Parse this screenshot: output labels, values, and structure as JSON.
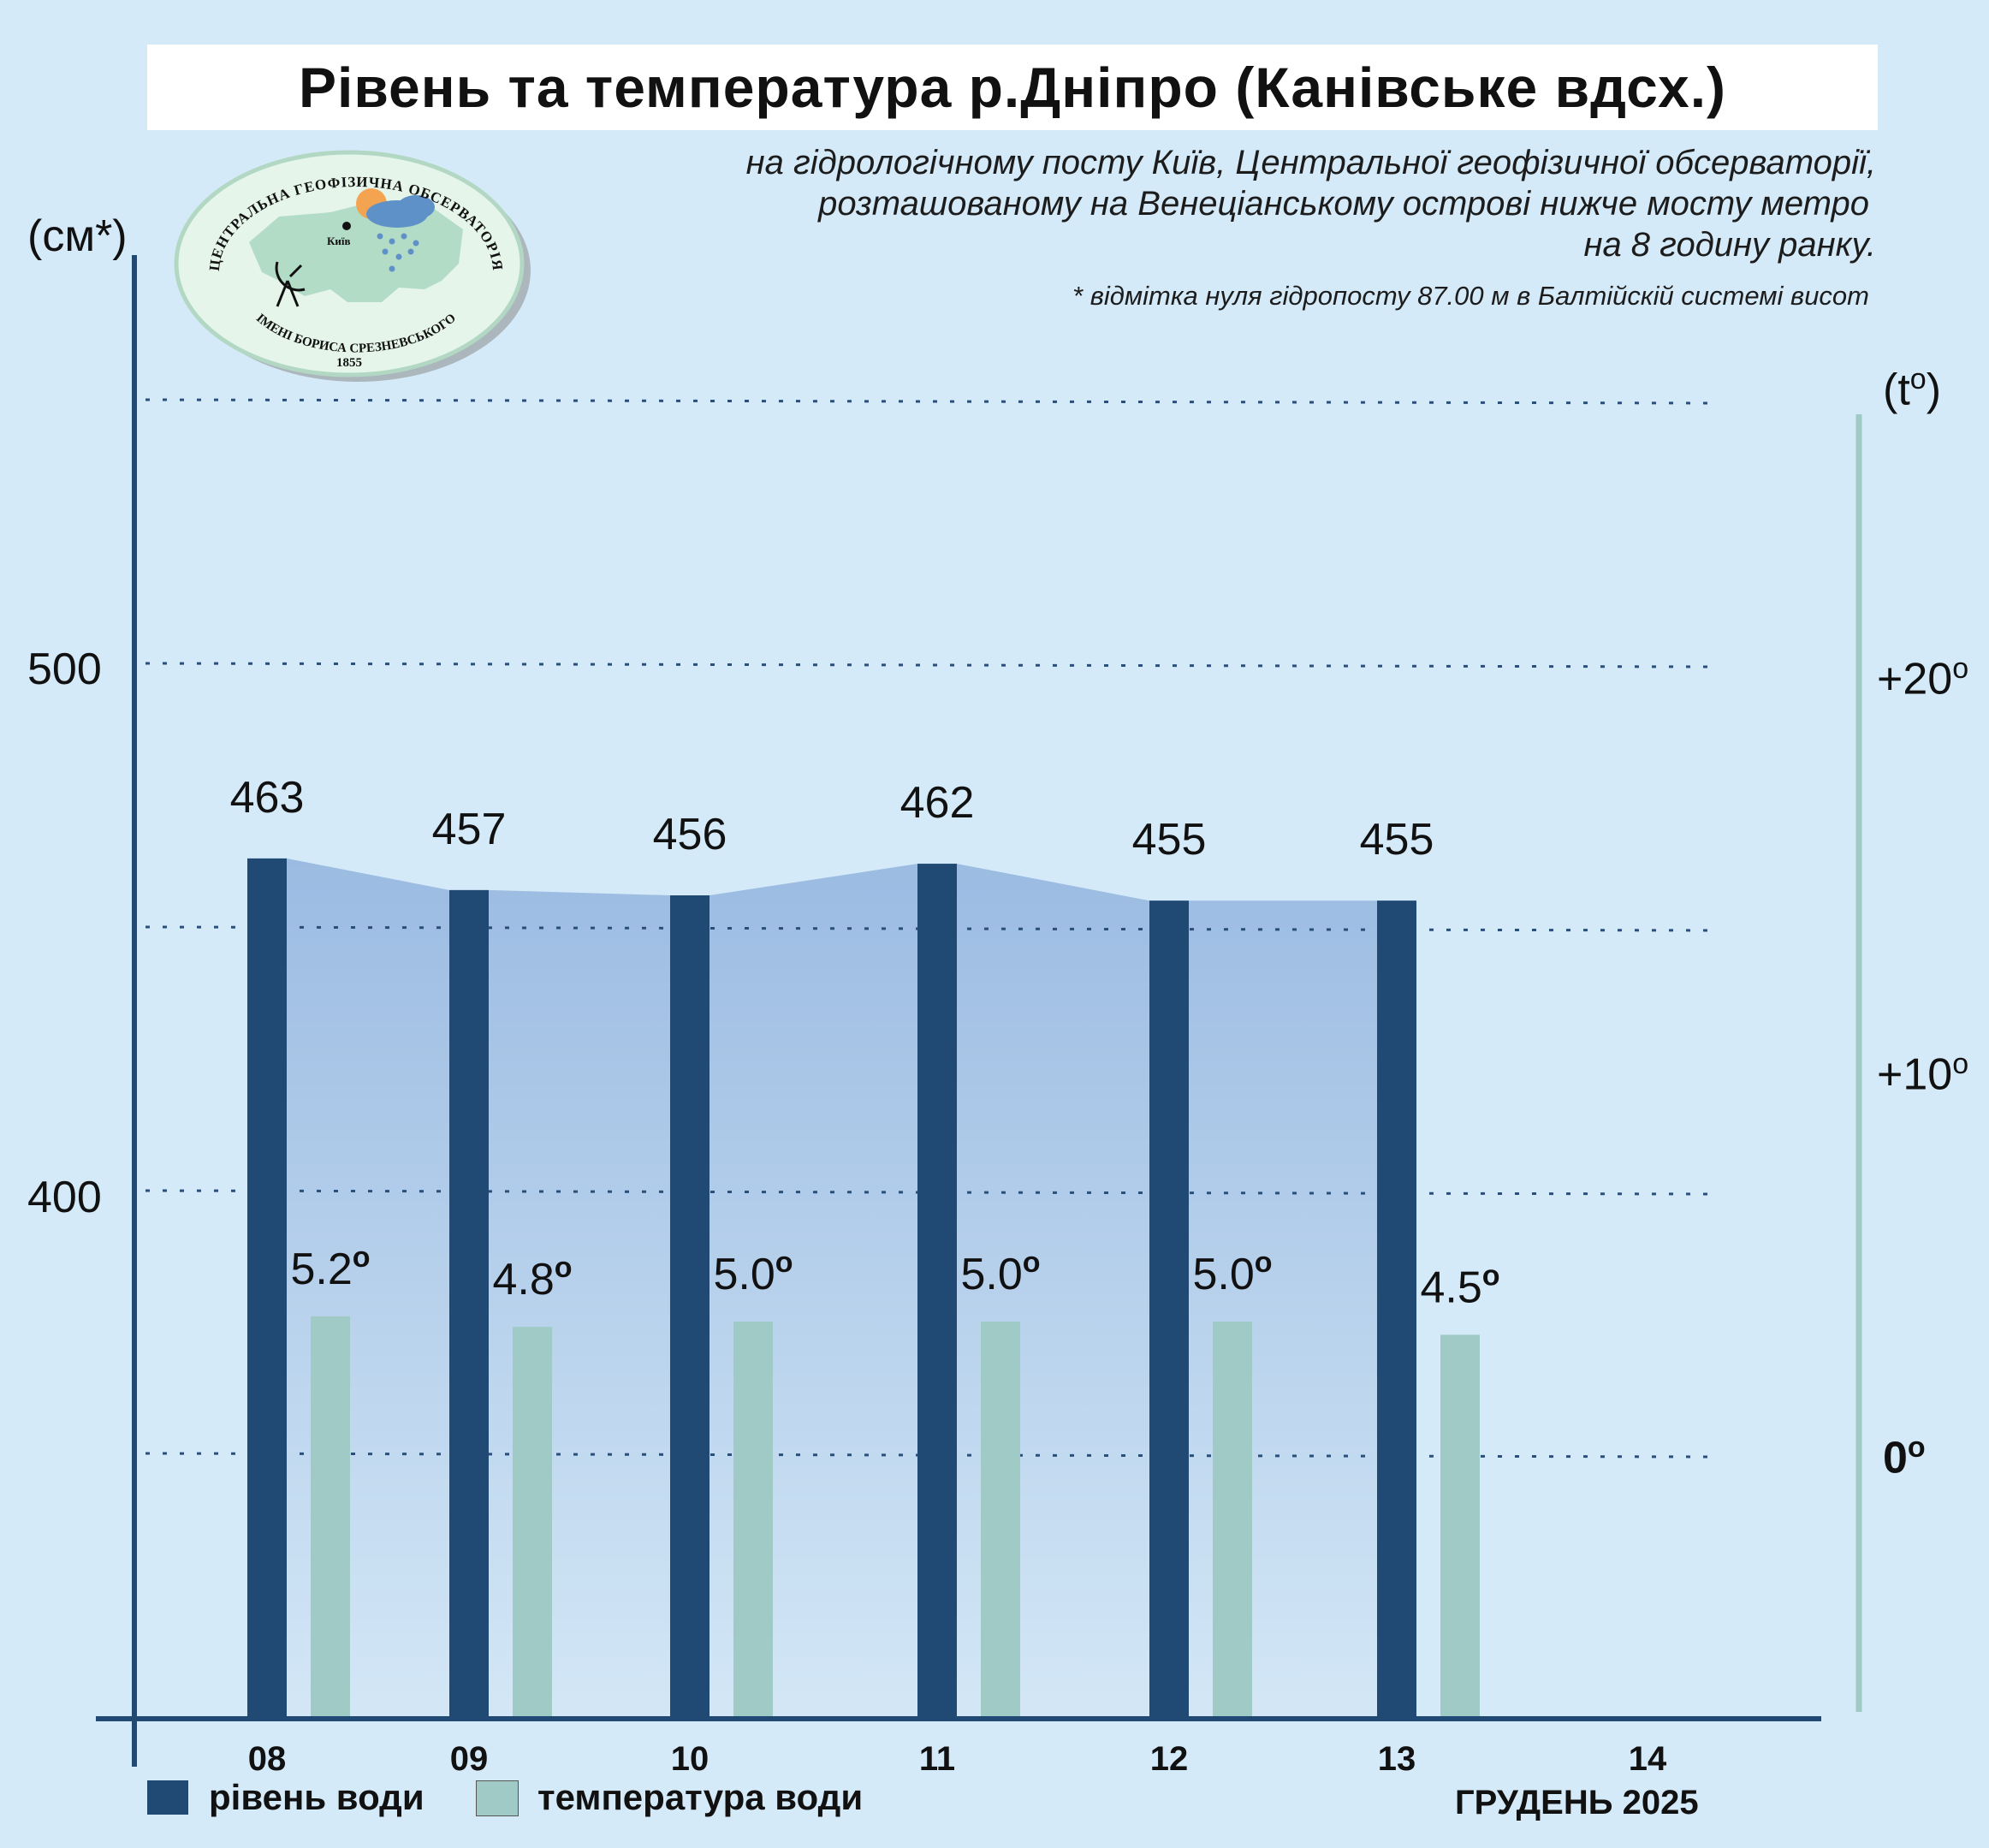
{
  "title": "Рівень та температура р.Дніпро (Канівське вдсх.)",
  "subtitle_lines": [
    "на гідрологічному посту Київ, Центральної геофізичної обсерваторії,",
    "розташованому на Венеціанському острові нижче мосту метро",
    "на 8 годину ранку."
  ],
  "footnote": "* відмітка нуля гідропосту 87.00 м в Балтійскій системі висот",
  "logo": {
    "top_text": "ЦЕНТРАЛЬНА ГЕОФІЗИЧНА ОБСЕРВАТОРІЯ",
    "bottom_text": "ІМЕНІ БОРИСА СРЕЗНЕВСЬКОГО",
    "year": "1855",
    "city": "Київ"
  },
  "axis_left": {
    "unit": "(см*)",
    "ticks": [
      "500",
      "400"
    ]
  },
  "axis_right": {
    "unit": "(t",
    "unit_sup": "o",
    "unit_close": ")",
    "ticks": [
      "+20",
      "+10",
      "0"
    ],
    "tick_sup": "o"
  },
  "period": "ГРУДЕНЬ 2025",
  "legend": {
    "level": "рівень води",
    "temperature": "температура води"
  },
  "colors": {
    "level_bar": "#204a73",
    "temp_bar": "#9fcac5",
    "area_top": "#9bbbe2",
    "area_bottom": "#d3e7f6",
    "grid": "#2a4f78",
    "axis": "#204a73",
    "right_axis": "#9fcac5"
  },
  "chart_data": {
    "type": "bar",
    "categories": [
      "08",
      "09",
      "10",
      "11",
      "12",
      "13",
      "14"
    ],
    "series": [
      {
        "name": "рівень води",
        "unit": "см",
        "values": [
          463,
          457,
          456,
          462,
          455,
          455,
          null
        ]
      },
      {
        "name": "температура води",
        "unit": "°C",
        "values": [
          5.2,
          4.8,
          5.0,
          5.0,
          5.0,
          4.5,
          null
        ]
      }
    ],
    "level_labels": [
      "463",
      "457",
      "456",
      "462",
      "455",
      "455"
    ],
    "temp_labels": [
      "5.2",
      "4.8",
      "5.0",
      "5.0",
      "5.0",
      "4.5"
    ],
    "temp_label_sup": "o",
    "ylim_level": [
      290,
      550
    ],
    "ylim_temp": [
      -5,
      25
    ],
    "ylabel": "(см*)",
    "y2label": "(to)",
    "xlabel": "ГРУДЕНЬ 2025",
    "grid": true,
    "legend_position": "bottom-left"
  }
}
